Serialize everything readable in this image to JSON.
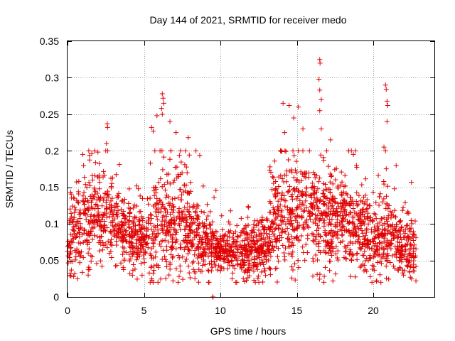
{
  "chart_data": {
    "type": "scatter",
    "title": "Day 144 of 2021, SRMTID for receiver medo",
    "xlabel": "GPS time / hours",
    "ylabel": "SRMTID / TECUs",
    "xlim": [
      0,
      24
    ],
    "ylim": [
      0,
      0.35
    ],
    "x_ticks": [
      0,
      5,
      10,
      15,
      20
    ],
    "x_tick_labels": [
      "0",
      "5",
      "10",
      "15",
      "20"
    ],
    "y_ticks": [
      0,
      0.05,
      0.1,
      0.15,
      0.2,
      0.25,
      0.3,
      0.35
    ],
    "y_tick_labels": [
      "0",
      "0.05",
      "0.1",
      "0.15",
      "0.2",
      "0.25",
      "0.3",
      "0.35"
    ],
    "grid": true,
    "marker": "plus",
    "color": "#e00000",
    "activity_profile": {
      "hours": [
        0,
        1,
        2,
        3,
        4,
        5,
        6,
        7,
        8,
        9,
        10,
        11,
        12,
        13,
        14,
        15,
        16,
        17,
        18,
        19,
        20,
        21,
        22,
        22.8
      ],
      "level": [
        0.07,
        0.1,
        0.11,
        0.1,
        0.08,
        0.07,
        0.1,
        0.1,
        0.09,
        0.07,
        0.065,
        0.06,
        0.06,
        0.07,
        0.11,
        0.12,
        0.12,
        0.1,
        0.1,
        0.09,
        0.07,
        0.09,
        0.07,
        0.065
      ],
      "spread": [
        0.03,
        0.04,
        0.04,
        0.04,
        0.03,
        0.03,
        0.05,
        0.05,
        0.04,
        0.03,
        0.02,
        0.02,
        0.025,
        0.03,
        0.05,
        0.05,
        0.05,
        0.045,
        0.04,
        0.04,
        0.03,
        0.04,
        0.03,
        0.025
      ]
    },
    "peaks": [
      {
        "x": 1.0,
        "y": 0.195
      },
      {
        "x": 1.05,
        "y": 0.18
      },
      {
        "x": 2.6,
        "y": 0.237
      },
      {
        "x": 2.62,
        "y": 0.232
      },
      {
        "x": 2.55,
        "y": 0.21
      },
      {
        "x": 2.5,
        "y": 0.2
      },
      {
        "x": 6.2,
        "y": 0.278
      },
      {
        "x": 6.25,
        "y": 0.272
      },
      {
        "x": 6.3,
        "y": 0.265
      },
      {
        "x": 6.15,
        "y": 0.258
      },
      {
        "x": 6.2,
        "y": 0.25
      },
      {
        "x": 5.85,
        "y": 0.248
      },
      {
        "x": 5.5,
        "y": 0.232
      },
      {
        "x": 5.6,
        "y": 0.227
      },
      {
        "x": 6.7,
        "y": 0.24
      },
      {
        "x": 7.1,
        "y": 0.225
      },
      {
        "x": 7.9,
        "y": 0.218
      },
      {
        "x": 8.4,
        "y": 0.2
      },
      {
        "x": 14.1,
        "y": 0.265
      },
      {
        "x": 14.5,
        "y": 0.262
      },
      {
        "x": 15.1,
        "y": 0.26
      },
      {
        "x": 14.8,
        "y": 0.245
      },
      {
        "x": 14.2,
        "y": 0.225
      },
      {
        "x": 15.4,
        "y": 0.23
      },
      {
        "x": 16.5,
        "y": 0.325
      },
      {
        "x": 16.52,
        "y": 0.32
      },
      {
        "x": 16.45,
        "y": 0.298
      },
      {
        "x": 16.5,
        "y": 0.283
      },
      {
        "x": 16.6,
        "y": 0.27
      },
      {
        "x": 16.5,
        "y": 0.255
      },
      {
        "x": 16.6,
        "y": 0.23
      },
      {
        "x": 17.2,
        "y": 0.215
      },
      {
        "x": 18.7,
        "y": 0.195
      },
      {
        "x": 18.9,
        "y": 0.18
      },
      {
        "x": 20.8,
        "y": 0.29
      },
      {
        "x": 20.85,
        "y": 0.284
      },
      {
        "x": 20.9,
        "y": 0.268
      },
      {
        "x": 20.95,
        "y": 0.262
      },
      {
        "x": 20.9,
        "y": 0.24
      },
      {
        "x": 20.7,
        "y": 0.205
      },
      {
        "x": 20.8,
        "y": 0.2
      },
      {
        "x": 21.5,
        "y": 0.18
      },
      {
        "x": 22.5,
        "y": 0.157
      }
    ],
    "lows": [
      {
        "x": 9.5,
        "y": 0.0
      },
      {
        "x": 9.52,
        "y": 0.0
      },
      {
        "x": 5.5,
        "y": 0.025
      },
      {
        "x": 6.9,
        "y": 0.022
      },
      {
        "x": 11.5,
        "y": 0.025
      },
      {
        "x": 0.4,
        "y": 0.028
      }
    ],
    "total_points": 2600
  }
}
